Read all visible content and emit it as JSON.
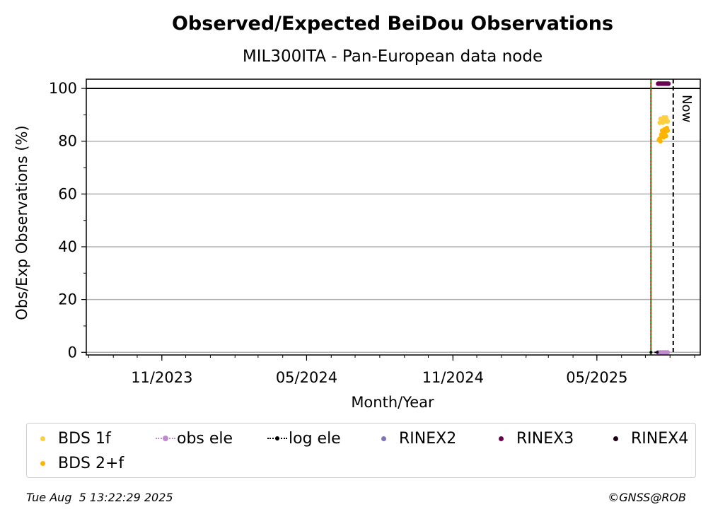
{
  "chart_data": {
    "type": "scatter",
    "title": "Observed/Expected BeiDou Observations",
    "subtitle": "MIL300ITA - Pan-European data node",
    "xlabel": "Month/Year",
    "ylabel": "Obs/Exp Observations (%)",
    "ylim": [
      -1,
      103.5
    ],
    "xlim": [
      "2023-07-29",
      "2025-09-08"
    ],
    "x_ticks": [
      {
        "date": "2023-11-01",
        "label": "11/2023"
      },
      {
        "date": "2024-05-01",
        "label": "05/2024"
      },
      {
        "date": "2024-11-01",
        "label": "11/2024"
      },
      {
        "date": "2025-05-01",
        "label": "05/2025"
      }
    ],
    "y_ticks": [
      0,
      20,
      40,
      60,
      80,
      100
    ],
    "grid": "horizontal",
    "reference_line_y": 100,
    "vertical_lines": [
      {
        "date": "2025-07-08",
        "color": "#2e8b00",
        "style": "solid"
      },
      {
        "date": "2025-07-08",
        "color": "#d62728",
        "style": "dotted"
      },
      {
        "date": "2025-08-05",
        "color": "#000000",
        "style": "dashed",
        "label": "Now"
      }
    ],
    "series": [
      {
        "name": "BDS 1f",
        "color": "#ffcf40",
        "marker": "dot",
        "points": [
          [
            "2025-07-19",
            87
          ],
          [
            "2025-07-20",
            88.5
          ],
          [
            "2025-07-21",
            87.5
          ],
          [
            "2025-07-22",
            88
          ],
          [
            "2025-07-23",
            87
          ],
          [
            "2025-07-24",
            89
          ],
          [
            "2025-07-25",
            88.5
          ],
          [
            "2025-07-26",
            87.5
          ],
          [
            "2025-07-27",
            89
          ],
          [
            "2025-07-28",
            88
          ],
          [
            "2025-07-29",
            87.5
          ]
        ]
      },
      {
        "name": "BDS 2+f",
        "color": "#ffb400",
        "marker": "dot",
        "points": [
          [
            "2025-07-18",
            80.5
          ],
          [
            "2025-07-19",
            81
          ],
          [
            "2025-07-20",
            80
          ],
          [
            "2025-07-21",
            82.5
          ],
          [
            "2025-07-22",
            84
          ],
          [
            "2025-07-23",
            83
          ],
          [
            "2025-07-24",
            81.5
          ],
          [
            "2025-07-25",
            84.5
          ],
          [
            "2025-07-26",
            83.5
          ],
          [
            "2025-07-27",
            82
          ],
          [
            "2025-07-28",
            85
          ],
          [
            "2025-07-29",
            84
          ]
        ]
      },
      {
        "name": "obs ele",
        "color": "#c08ad0",
        "marker": "line-dot",
        "points": [
          [
            "2025-07-17",
            0
          ],
          [
            "2025-07-20",
            0
          ],
          [
            "2025-07-23",
            0
          ],
          [
            "2025-07-26",
            0
          ],
          [
            "2025-07-29",
            0
          ]
        ]
      },
      {
        "name": "log ele",
        "color": "#000000",
        "marker": "dotted-line",
        "points": [
          [
            "2025-07-08",
            0
          ],
          [
            "2025-07-16",
            0
          ]
        ]
      },
      {
        "name": "RINEX2",
        "color": "#7f74b8",
        "marker": "dot",
        "points": []
      },
      {
        "name": "RINEX3",
        "color": "#6a0050",
        "marker": "dot",
        "points": [
          [
            "2025-07-17",
            101.8
          ],
          [
            "2025-07-18",
            101.8
          ],
          [
            "2025-07-19",
            101.8
          ],
          [
            "2025-07-20",
            101.8
          ],
          [
            "2025-07-21",
            101.8
          ],
          [
            "2025-07-22",
            101.8
          ],
          [
            "2025-07-23",
            101.8
          ],
          [
            "2025-07-24",
            101.8
          ],
          [
            "2025-07-25",
            101.8
          ],
          [
            "2025-07-26",
            101.8
          ],
          [
            "2025-07-27",
            101.8
          ],
          [
            "2025-07-28",
            101.8
          ],
          [
            "2025-07-29",
            101.8
          ],
          [
            "2025-07-30",
            101.8
          ]
        ]
      },
      {
        "name": "RINEX4",
        "color": "#1a0010",
        "marker": "dot",
        "points": []
      }
    ]
  },
  "legend": {
    "items": [
      {
        "label": "BDS 1f",
        "color": "#ffcf40",
        "marker": "dot"
      },
      {
        "label": "obs ele",
        "color": "#c08ad0",
        "marker": "line-dot"
      },
      {
        "label": "log ele",
        "color": "#000000",
        "marker": "dotted-line"
      },
      {
        "label": "RINEX2",
        "color": "#7f74b8",
        "marker": "dot"
      },
      {
        "label": "RINEX3",
        "color": "#6a0050",
        "marker": "dot"
      },
      {
        "label": "RINEX4",
        "color": "#1a0010",
        "marker": "dot"
      },
      {
        "label": "BDS 2+f",
        "color": "#ffb400",
        "marker": "dot"
      }
    ]
  },
  "footer": {
    "timestamp": "Tue Aug  5 13:22:29 2025",
    "credit": "©GNSS@ROB"
  }
}
